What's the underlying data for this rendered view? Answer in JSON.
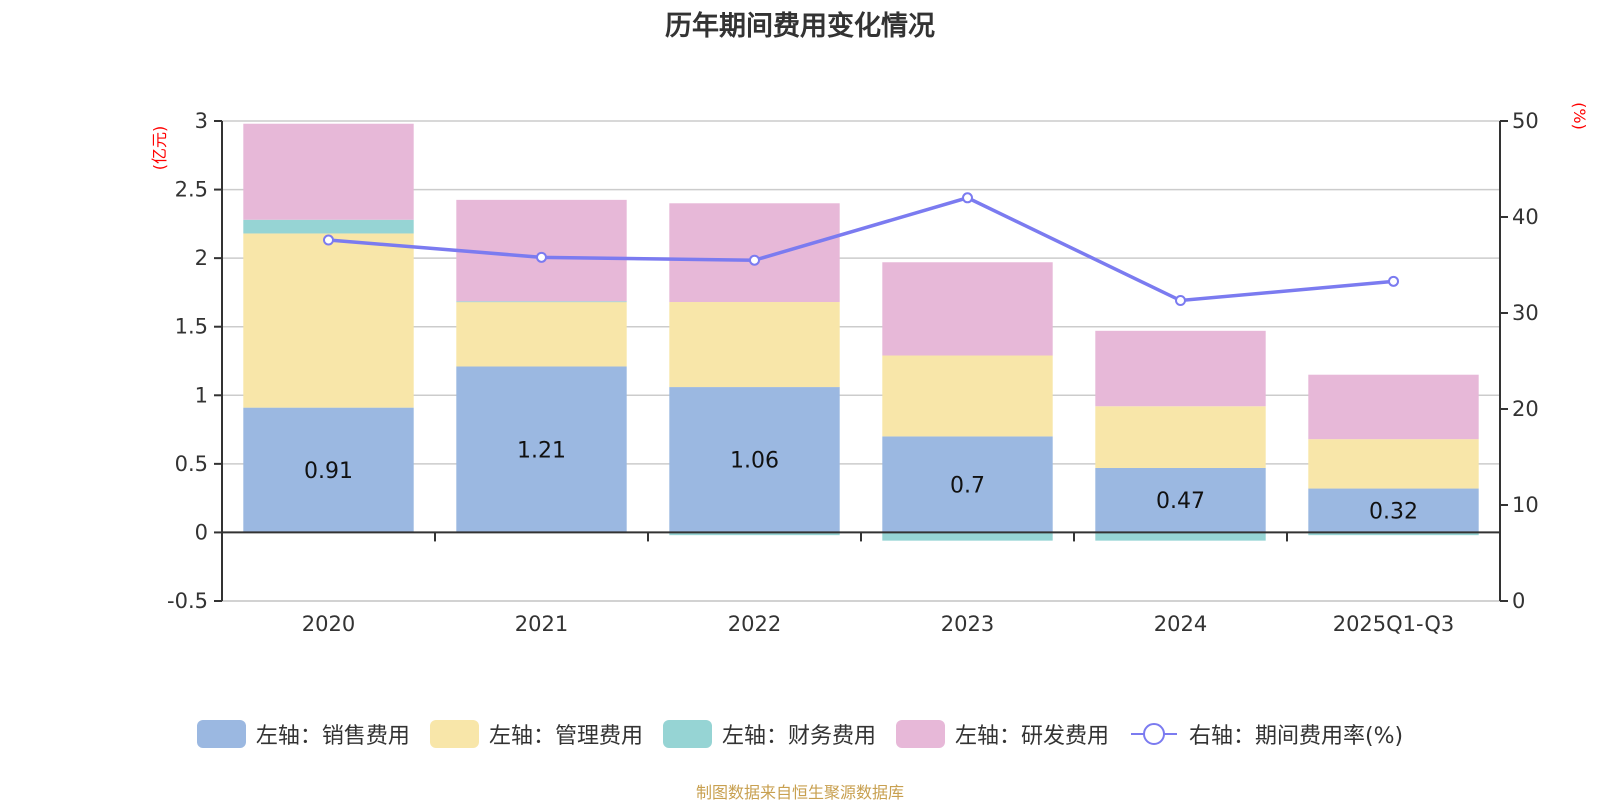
{
  "chart_data": {
    "type": "bar",
    "title": "历年期间费用变化情况",
    "categories": [
      "2020",
      "2021",
      "2022",
      "2023",
      "2024",
      "2025Q1-Q3"
    ],
    "series": [
      {
        "name": "左轴：销售费用",
        "axis": "left",
        "kind": "stacked-bar",
        "color": "#9bb8e1",
        "values": [
          0.91,
          1.21,
          1.06,
          0.7,
          0.47,
          0.32
        ],
        "labels": [
          "0.91",
          "1.21",
          "1.06",
          "0.7",
          "0.47",
          "0.32"
        ]
      },
      {
        "name": "左轴：管理费用",
        "axis": "left",
        "kind": "stacked-bar",
        "color": "#f8e6a9",
        "values": [
          1.27,
          0.47,
          0.62,
          0.59,
          0.45,
          0.36
        ]
      },
      {
        "name": "左轴：财务费用",
        "axis": "left",
        "kind": "stacked-bar",
        "color": "#96d4d4",
        "values": [
          0.1,
          0.005,
          -0.02,
          -0.06,
          -0.06,
          -0.02
        ]
      },
      {
        "name": "左轴：研发费用",
        "axis": "left",
        "kind": "stacked-bar",
        "color": "#e7b8d8",
        "values": [
          0.7,
          0.74,
          0.72,
          0.68,
          0.55,
          0.47
        ]
      },
      {
        "name": "右轴：期间费用率(%)",
        "axis": "right",
        "kind": "line",
        "color": "#7b7bf0",
        "values": [
          37.6,
          35.8,
          35.5,
          42.0,
          31.3,
          33.3
        ]
      }
    ],
    "left_axis": {
      "unit": "(亿元)",
      "ylim": [
        -0.5,
        3
      ],
      "ticks": [
        -0.5,
        0,
        0.5,
        1,
        1.5,
        2,
        2.5,
        3
      ],
      "tick_labels": [
        "-0.5",
        "0",
        "0.5",
        "1",
        "1.5",
        "2",
        "2.5",
        "3"
      ]
    },
    "right_axis": {
      "unit": "(%)",
      "ylim": [
        0,
        50
      ],
      "ticks": [
        0,
        10,
        20,
        30,
        40,
        50
      ],
      "tick_labels": [
        "0",
        "10",
        "20",
        "30",
        "40",
        "50"
      ]
    },
    "grid": true,
    "legend_position": "bottom",
    "xlabel": "",
    "ylabel": "(亿元)",
    "y2label": "(%)"
  },
  "legend": [
    {
      "label": "左轴：销售费用",
      "color": "#9bb8e1",
      "type": "swatch"
    },
    {
      "label": "左轴：管理费用",
      "color": "#f8e6a9",
      "type": "swatch"
    },
    {
      "label": "左轴：财务费用",
      "color": "#96d4d4",
      "type": "swatch"
    },
    {
      "label": "左轴：研发费用",
      "color": "#e7b8d8",
      "type": "swatch"
    },
    {
      "label": "右轴：期间费用率(%)",
      "color": "#7b7bf0",
      "type": "line"
    }
  ],
  "footer": "制图数据来自恒生聚源数据库"
}
